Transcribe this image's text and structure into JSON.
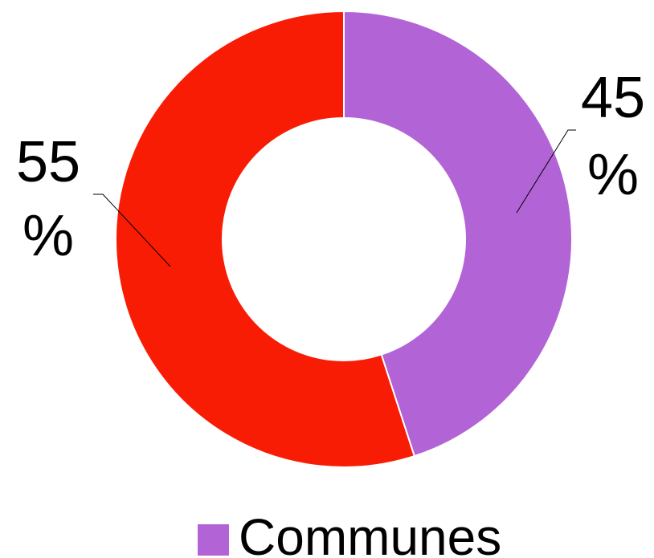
{
  "chart_data": {
    "type": "pie",
    "donut": true,
    "slices": [
      {
        "label": "Communes",
        "value": 45,
        "display_value": "45",
        "display_unit": "%",
        "color": "#b264d6"
      },
      {
        "label": "",
        "value": 55,
        "display_value": "55",
        "display_unit": "%",
        "color": "#f91c05"
      }
    ],
    "legend": {
      "placement": "bottom",
      "entries": [
        {
          "label": "Communes",
          "color": "#b264d6"
        }
      ]
    }
  }
}
